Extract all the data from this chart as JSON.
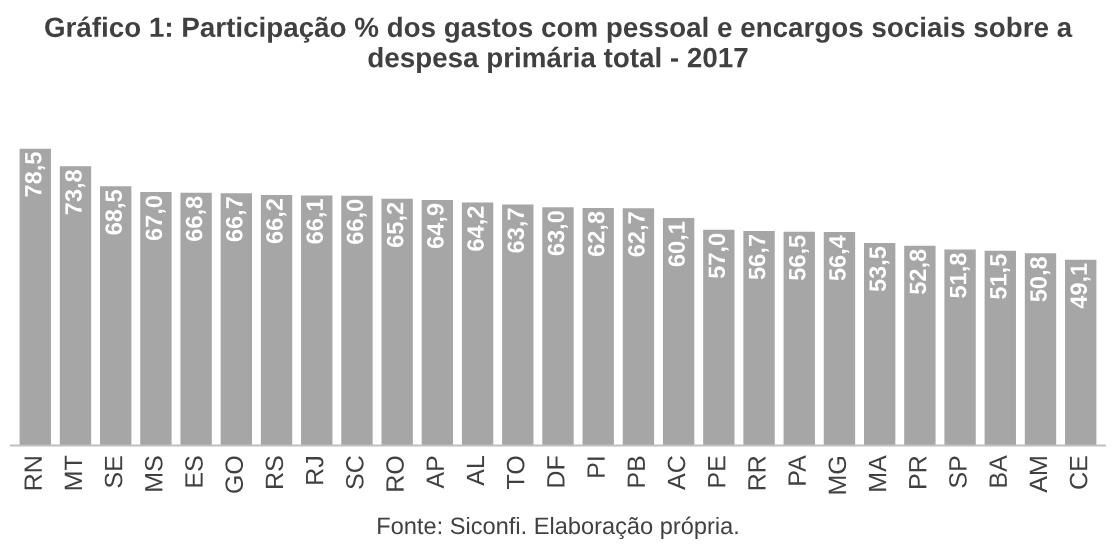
{
  "chart_data": {
    "type": "bar",
    "title": "Gráfico 1: Participação % dos gastos com pessoal e encargos sociais sobre a\ndespesa primária total - 2017",
    "categories": [
      "RN",
      "MT",
      "SE",
      "MS",
      "ES",
      "GO",
      "RS",
      "RJ",
      "SC",
      "RO",
      "AP",
      "AL",
      "TO",
      "DF",
      "PI",
      "PB",
      "AC",
      "PE",
      "RR",
      "PA",
      "MG",
      "MA",
      "PR",
      "SP",
      "BA",
      "AM",
      "CE"
    ],
    "values": [
      78.5,
      73.8,
      68.5,
      67.0,
      66.8,
      66.7,
      66.2,
      66.1,
      66.0,
      65.2,
      64.9,
      64.2,
      63.7,
      63.0,
      62.8,
      62.7,
      60.1,
      57.0,
      56.7,
      56.5,
      56.4,
      53.5,
      52.8,
      51.8,
      51.5,
      50.8,
      49.1
    ],
    "value_labels": [
      "78,5",
      "73,8",
      "68,5",
      "67,0",
      "66,8",
      "66,7",
      "66,2",
      "66,1",
      "66,0",
      "65,2",
      "64,9",
      "64,2",
      "63,7",
      "63,0",
      "62,8",
      "62,7",
      "60,1",
      "57,0",
      "56,7",
      "56,5",
      "56,4",
      "53,5",
      "52,8",
      "51,8",
      "51,5",
      "50,8",
      "49,1"
    ],
    "color": "#a6a6a6",
    "tick_labels": "x",
    "grid": false,
    "annotations": [
      "Fonte: Siconfi. Elaboração própria."
    ]
  }
}
